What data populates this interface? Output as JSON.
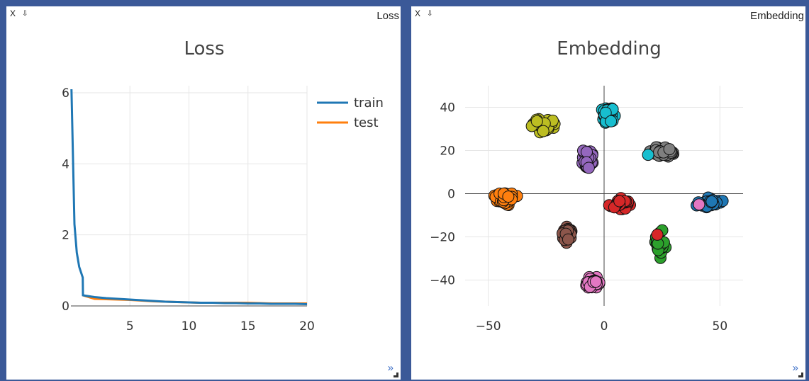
{
  "panes": [
    {
      "close": "X",
      "download": "⇩",
      "name": "Loss",
      "expand": "»"
    },
    {
      "close": "X",
      "download": "⇩",
      "name": "Embedding",
      "expand": "»"
    }
  ],
  "chart_data": [
    {
      "type": "line",
      "title": "Loss",
      "xlabel": "",
      "ylabel": "",
      "xlim": [
        0,
        20
      ],
      "ylim": [
        0,
        6.2
      ],
      "xticks": [
        5,
        10,
        15,
        20
      ],
      "yticks": [
        0,
        2,
        4,
        6
      ],
      "grid": true,
      "legend": "top-right",
      "series": [
        {
          "name": "train",
          "color": "#1f77b4",
          "x": [
            0.05,
            0.3,
            0.5,
            0.7,
            1.0,
            1.02,
            2,
            3,
            4,
            5,
            6,
            7,
            8,
            9,
            10,
            11,
            12,
            13,
            14,
            15,
            16,
            17,
            18,
            19,
            20
          ],
          "y": [
            6.1,
            2.3,
            1.5,
            1.1,
            0.8,
            0.3,
            0.25,
            0.22,
            0.2,
            0.18,
            0.16,
            0.14,
            0.12,
            0.11,
            0.1,
            0.09,
            0.09,
            0.08,
            0.08,
            0.07,
            0.07,
            0.06,
            0.06,
            0.06,
            0.05
          ]
        },
        {
          "name": "test",
          "color": "#ff7f0e",
          "x": [
            1,
            2,
            3,
            4,
            5,
            6,
            7,
            8,
            9,
            10,
            11,
            12,
            13,
            14,
            15,
            16,
            17,
            18,
            19,
            20
          ],
          "y": [
            0.3,
            0.2,
            0.19,
            0.18,
            0.17,
            0.15,
            0.13,
            0.12,
            0.11,
            0.1,
            0.09,
            0.09,
            0.09,
            0.09,
            0.09,
            0.08,
            0.07,
            0.07,
            0.07,
            0.07
          ]
        }
      ]
    },
    {
      "type": "scatter",
      "title": "Embedding",
      "xlabel": "",
      "ylabel": "",
      "xlim": [
        -60,
        60
      ],
      "ylim": [
        -52,
        50
      ],
      "xticks": [
        -50,
        0,
        50
      ],
      "xtick_labels": [
        "−50",
        "0",
        "50"
      ],
      "yticks": [
        -40,
        -20,
        0,
        20,
        40
      ],
      "ytick_labels": [
        "−40",
        "−20",
        "0",
        "20",
        "40"
      ],
      "grid": true,
      "zero_lines": true,
      "clusters": [
        {
          "color": "#bcbd22",
          "center": [
            -27,
            32
          ],
          "spread": [
            3.5,
            2.2
          ]
        },
        {
          "color": "#17becf",
          "center": [
            2,
            36
          ],
          "spread": [
            2.0,
            3.5
          ]
        },
        {
          "color": "#9467bd",
          "center": [
            -7,
            16
          ],
          "spread": [
            2.0,
            3.0
          ]
        },
        {
          "color": "#7f7f7f",
          "center": [
            25,
            19
          ],
          "spread": [
            4.5,
            2.0
          ]
        },
        {
          "color": "#ff7f0e",
          "center": [
            -43,
            -2
          ],
          "spread": [
            3.5,
            2.5
          ]
        },
        {
          "color": "#d62728",
          "center": [
            7,
            -5
          ],
          "spread": [
            3.5,
            2.3
          ]
        },
        {
          "color": "#1f77b4",
          "center": [
            46,
            -4
          ],
          "spread": [
            4.5,
            1.8
          ]
        },
        {
          "color": "#8c564b",
          "center": [
            -16,
            -19
          ],
          "spread": [
            2.0,
            3.0
          ]
        },
        {
          "color": "#2ca02c",
          "center": [
            24,
            -24
          ],
          "spread": [
            1.8,
            4.5
          ]
        },
        {
          "color": "#e377c2",
          "center": [
            -5,
            -41
          ],
          "spread": [
            2.3,
            2.5
          ]
        }
      ],
      "outliers": [
        {
          "color": "#17becf",
          "x": 19,
          "y": 18
        },
        {
          "color": "#e377c2",
          "x": 41,
          "y": -5
        },
        {
          "color": "#d62728",
          "x": 23,
          "y": -19
        }
      ]
    }
  ]
}
